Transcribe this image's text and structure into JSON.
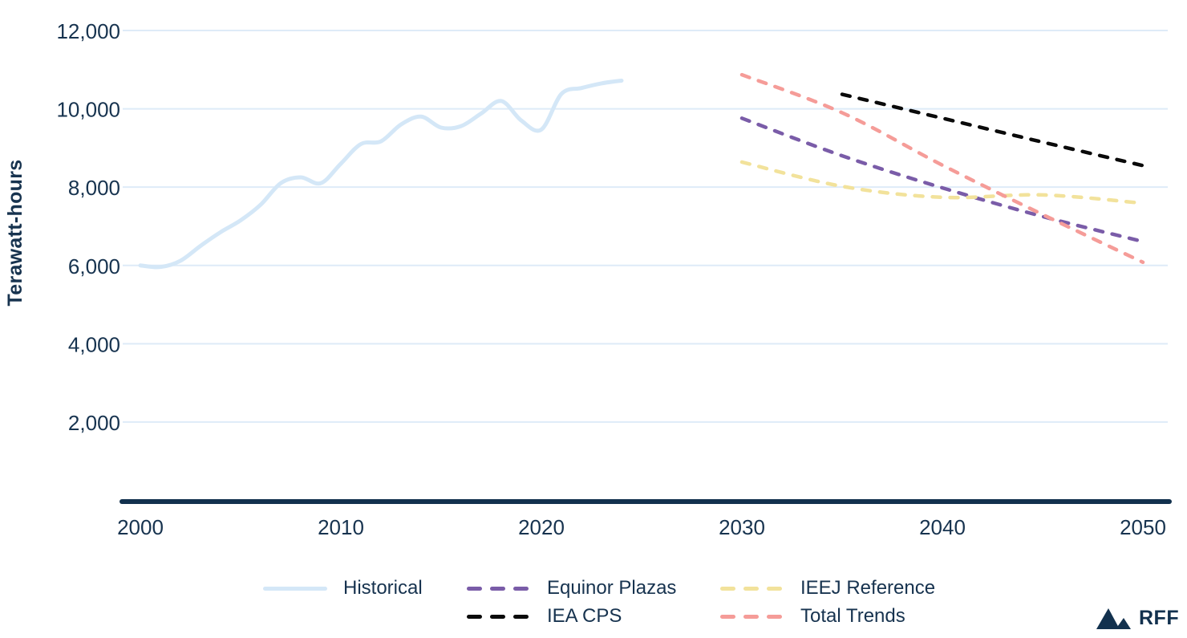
{
  "chart_data": {
    "type": "line",
    "title": "",
    "xlabel": "",
    "ylabel": "Terawatt-hours",
    "xlim": [
      2000,
      2050
    ],
    "ylim": [
      0,
      12000
    ],
    "grid": "horizontal",
    "legend_position": "bottom",
    "x_ticks": [
      {
        "value": 2000,
        "label": "2000"
      },
      {
        "value": 2010,
        "label": "2010"
      },
      {
        "value": 2020,
        "label": "2020"
      },
      {
        "value": 2030,
        "label": "2030"
      },
      {
        "value": 2040,
        "label": "2040"
      },
      {
        "value": 2050,
        "label": "2050"
      }
    ],
    "y_ticks": [
      {
        "value": 12000,
        "label": "12,000"
      },
      {
        "value": 10000,
        "label": "10,000"
      },
      {
        "value": 8000,
        "label": "8,000"
      },
      {
        "value": 6000,
        "label": "6,000"
      },
      {
        "value": 4000,
        "label": "4,000"
      },
      {
        "value": 2000,
        "label": "2,000"
      }
    ],
    "series": [
      {
        "name": "Historical",
        "type": "solid",
        "color": "#d4e7f7",
        "width": 5,
        "x": [
          2000,
          2001,
          2002,
          2003,
          2004,
          2005,
          2006,
          2007,
          2008,
          2009,
          2010,
          2011,
          2012,
          2013,
          2014,
          2015,
          2016,
          2017,
          2018,
          2019,
          2020,
          2021,
          2022,
          2023,
          2024
        ],
        "values": [
          6000,
          5960,
          6120,
          6500,
          6850,
          7150,
          7550,
          8100,
          8250,
          8100,
          8600,
          9100,
          9170,
          9600,
          9800,
          9520,
          9560,
          9880,
          10200,
          9700,
          9470,
          10380,
          10530,
          10650,
          10720
        ]
      },
      {
        "name": "Equinor Plazas",
        "type": "dashed",
        "color": "#7a5ca8",
        "width": 4.5,
        "x": [
          2030,
          2035,
          2040,
          2045,
          2050
        ],
        "values": [
          9760,
          8800,
          7980,
          7250,
          6610
        ]
      },
      {
        "name": "IEA CPS",
        "type": "dashed",
        "color": "#0a0a0a",
        "width": 4.5,
        "x": [
          2035,
          2040,
          2045,
          2050
        ],
        "values": [
          10370,
          9760,
          9150,
          8550
        ]
      },
      {
        "name": "IEEJ Reference",
        "type": "dashed",
        "color": "#f2e29b",
        "width": 4.5,
        "x": [
          2030,
          2035,
          2040,
          2045,
          2050
        ],
        "values": [
          8640,
          8020,
          7740,
          7800,
          7590
        ]
      },
      {
        "name": "Total Trends",
        "type": "dashed",
        "color": "#f59c98",
        "width": 4.5,
        "x": [
          2030,
          2035,
          2040,
          2045,
          2050
        ],
        "values": [
          10870,
          9900,
          8560,
          7300,
          6080
        ]
      }
    ]
  },
  "colors": {
    "text": "#17334f",
    "axis": "#12314e",
    "grid": "#deebf8",
    "background": "#ffffff"
  },
  "branding": {
    "logo_text": "RFF"
  }
}
